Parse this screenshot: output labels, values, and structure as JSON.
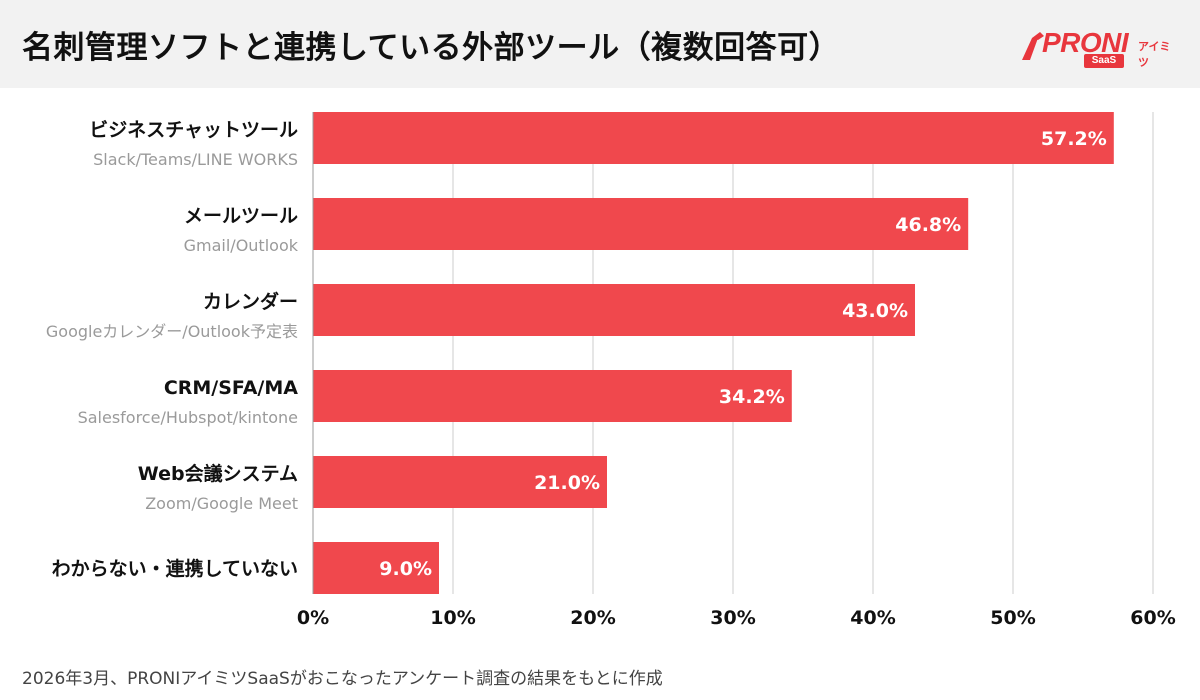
{
  "header": {
    "title": "名刺管理ソフトと連携している外部ツール（複数回答可）",
    "logo": {
      "word": "PRONI",
      "sub": "アイミツ",
      "badge": "SaaS"
    }
  },
  "footnote": "2026年3月、PRONIアイミツSaaSがおこなったアンケート調査の結果をもとに作成",
  "colors": {
    "bar": "#f0484d",
    "grid": "#cccccc",
    "brand": "#e8363d",
    "sublabel": "#9a9a9a"
  },
  "chart_data": {
    "type": "bar",
    "orientation": "horizontal",
    "categories": [
      "ビジネスチャットツール",
      "メールツール",
      "カレンダー",
      "CRM/SFA/MA",
      "Web会議システム",
      "わからない・連携していない"
    ],
    "sublabels": [
      "Slack/Teams/LINE WORKS",
      "Gmail/Outlook",
      "Googleカレンダー/Outlook予定表",
      "Salesforce/Hubspot/kintone",
      "Zoom/Google Meet",
      ""
    ],
    "values": [
      57.2,
      46.8,
      43.0,
      34.2,
      21.0,
      9.0
    ],
    "value_labels": [
      "57.2%",
      "46.8%",
      "43.0%",
      "34.2%",
      "21.0%",
      "9.0%"
    ],
    "xlim": [
      0,
      60
    ],
    "xticks": [
      0,
      10,
      20,
      30,
      40,
      50,
      60
    ],
    "xtick_labels": [
      "0%",
      "10%",
      "20%",
      "30%",
      "40%",
      "50%",
      "60%"
    ],
    "grid": true
  }
}
